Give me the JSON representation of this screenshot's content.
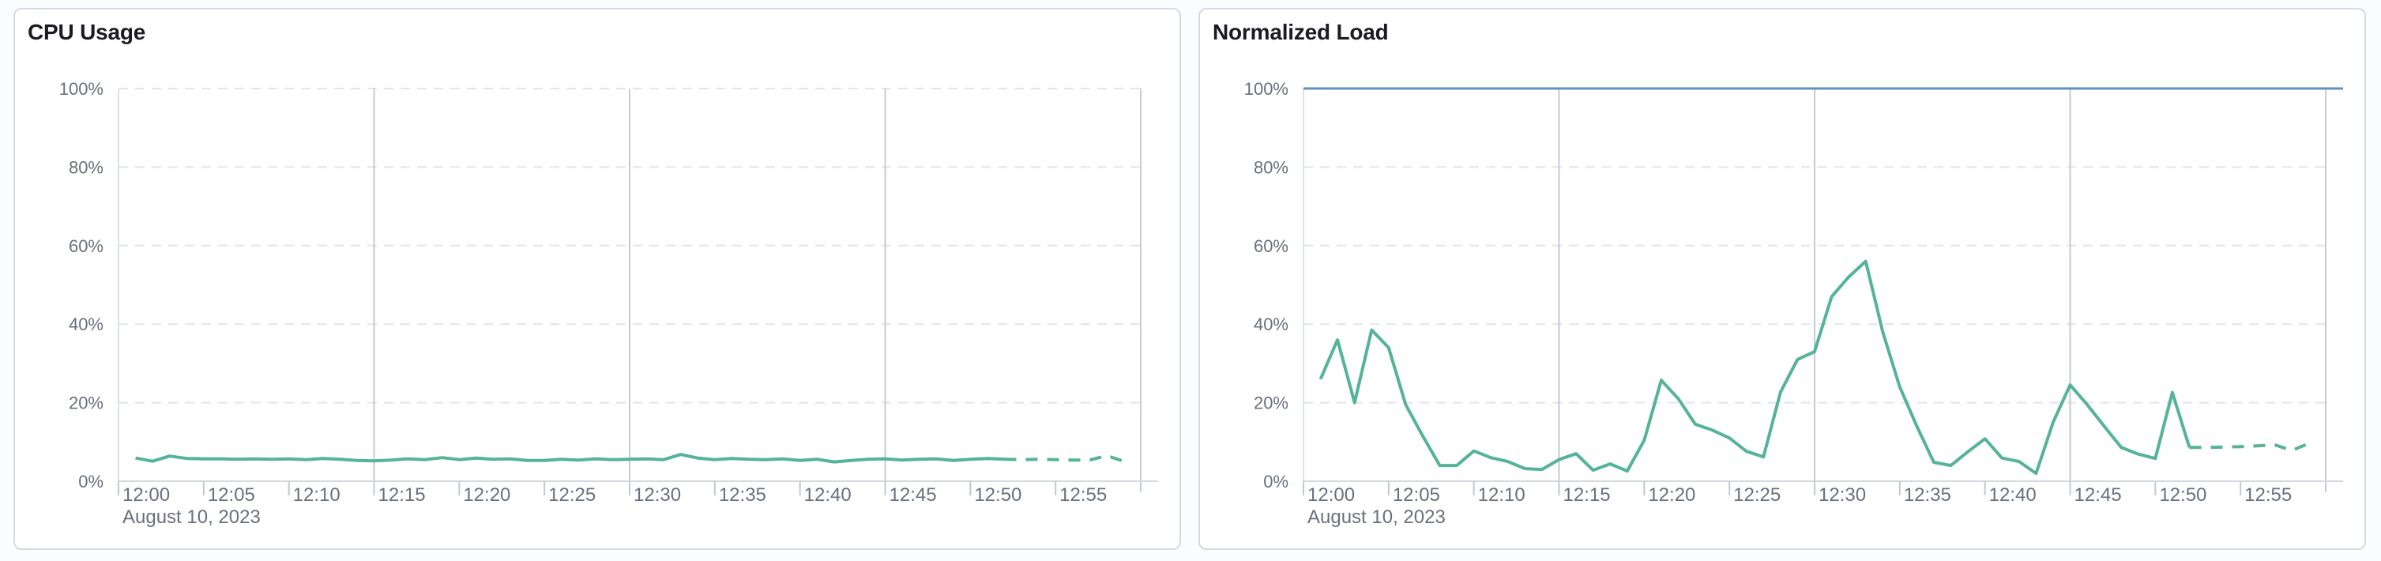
{
  "panels": [
    {
      "title": "CPU Usage"
    },
    {
      "title": "Normalized Load"
    }
  ],
  "chart_data": [
    {
      "type": "line",
      "title": "CPU Usage",
      "x_axis": {
        "tick_labels": [
          "12:00",
          "12:05",
          "12:10",
          "12:15",
          "12:20",
          "12:25",
          "12:30",
          "12:35",
          "12:40",
          "12:45",
          "12:50",
          "12:55"
        ],
        "date_label": "August 10, 2023",
        "start_minute": 0,
        "end_minute": 60,
        "major_gridline_minutes": [
          15,
          30,
          45,
          60
        ]
      },
      "y_axis": {
        "tick_labels": [
          "0%",
          "20%",
          "40%",
          "60%",
          "80%",
          "100%"
        ],
        "min": 0,
        "max": 100,
        "unit": "%"
      },
      "grid": true,
      "legend": false,
      "series": [
        {
          "name": "cpu-usage",
          "color": "#54b399",
          "dashed_from_minute": 52,
          "minutes": [
            1,
            2,
            3,
            4,
            5,
            6,
            7,
            8,
            9,
            10,
            11,
            12,
            13,
            14,
            15,
            16,
            17,
            18,
            19,
            20,
            21,
            22,
            23,
            24,
            25,
            26,
            27,
            28,
            29,
            30,
            31,
            32,
            33,
            34,
            35,
            36,
            37,
            38,
            39,
            40,
            41,
            42,
            43,
            44,
            45,
            46,
            47,
            48,
            49,
            50,
            51,
            52,
            53,
            54,
            55,
            56,
            57,
            58,
            59
          ],
          "values": [
            5.9,
            5.1,
            6.4,
            5.8,
            5.7,
            5.7,
            5.6,
            5.7,
            5.6,
            5.7,
            5.5,
            5.8,
            5.6,
            5.3,
            5.2,
            5.4,
            5.7,
            5.5,
            6.0,
            5.5,
            5.9,
            5.6,
            5.7,
            5.3,
            5.3,
            5.6,
            5.4,
            5.7,
            5.5,
            5.6,
            5.7,
            5.5,
            6.8,
            5.9,
            5.5,
            5.8,
            5.6,
            5.5,
            5.7,
            5.3,
            5.6,
            4.9,
            5.3,
            5.6,
            5.7,
            5.4,
            5.6,
            5.7,
            5.3,
            5.6,
            5.8,
            5.6,
            5.5,
            5.6,
            5.5,
            5.4,
            5.4,
            6.5,
            5.1
          ]
        }
      ]
    },
    {
      "type": "line",
      "title": "Normalized Load",
      "x_axis": {
        "tick_labels": [
          "12:00",
          "12:05",
          "12:10",
          "12:15",
          "12:20",
          "12:25",
          "12:30",
          "12:35",
          "12:40",
          "12:45",
          "12:50",
          "12:55"
        ],
        "date_label": "August 10, 2023",
        "start_minute": 0,
        "end_minute": 60,
        "major_gridline_minutes": [
          15,
          30,
          45,
          60
        ]
      },
      "y_axis": {
        "tick_labels": [
          "0%",
          "20%",
          "40%",
          "60%",
          "80%",
          "100%"
        ],
        "min": 0,
        "max": 100,
        "unit": "%"
      },
      "grid": true,
      "legend": false,
      "series": [
        {
          "name": "load-limit",
          "type": "horizontal-line",
          "value": 100,
          "color": "#6092c0"
        },
        {
          "name": "normalized-load",
          "color": "#54b399",
          "dashed_from_minute": 52,
          "minutes": [
            1,
            2,
            3,
            4,
            5,
            6,
            7,
            8,
            9,
            10,
            11,
            12,
            13,
            14,
            15,
            16,
            17,
            18,
            19,
            20,
            21,
            22,
            23,
            24,
            25,
            26,
            27,
            28,
            29,
            30,
            31,
            32,
            33,
            34,
            35,
            36,
            37,
            38,
            39,
            40,
            41,
            42,
            43,
            44,
            45,
            46,
            47,
            48,
            49,
            50,
            51,
            52,
            53,
            54,
            55,
            56,
            57,
            58,
            59
          ],
          "values": [
            26,
            36,
            20,
            38.5,
            34,
            19.5,
            11.5,
            4,
            4,
            7.7,
            6,
            5,
            3.2,
            3,
            5.5,
            7,
            2.8,
            4.4,
            2.6,
            10.4,
            25.7,
            21,
            14.5,
            13,
            11,
            7.6,
            6.2,
            22.7,
            31,
            33,
            47,
            52,
            56,
            38,
            24,
            14,
            4.8,
            4.0,
            7.5,
            10.8,
            5.9,
            5.0,
            2.0,
            15,
            24.5,
            19.5,
            14,
            8.6,
            6.9,
            5.8,
            22.6,
            8.6,
            8.6,
            8.7,
            8.8,
            9.0,
            9.3,
            7.8,
            9.6
          ]
        }
      ]
    }
  ]
}
